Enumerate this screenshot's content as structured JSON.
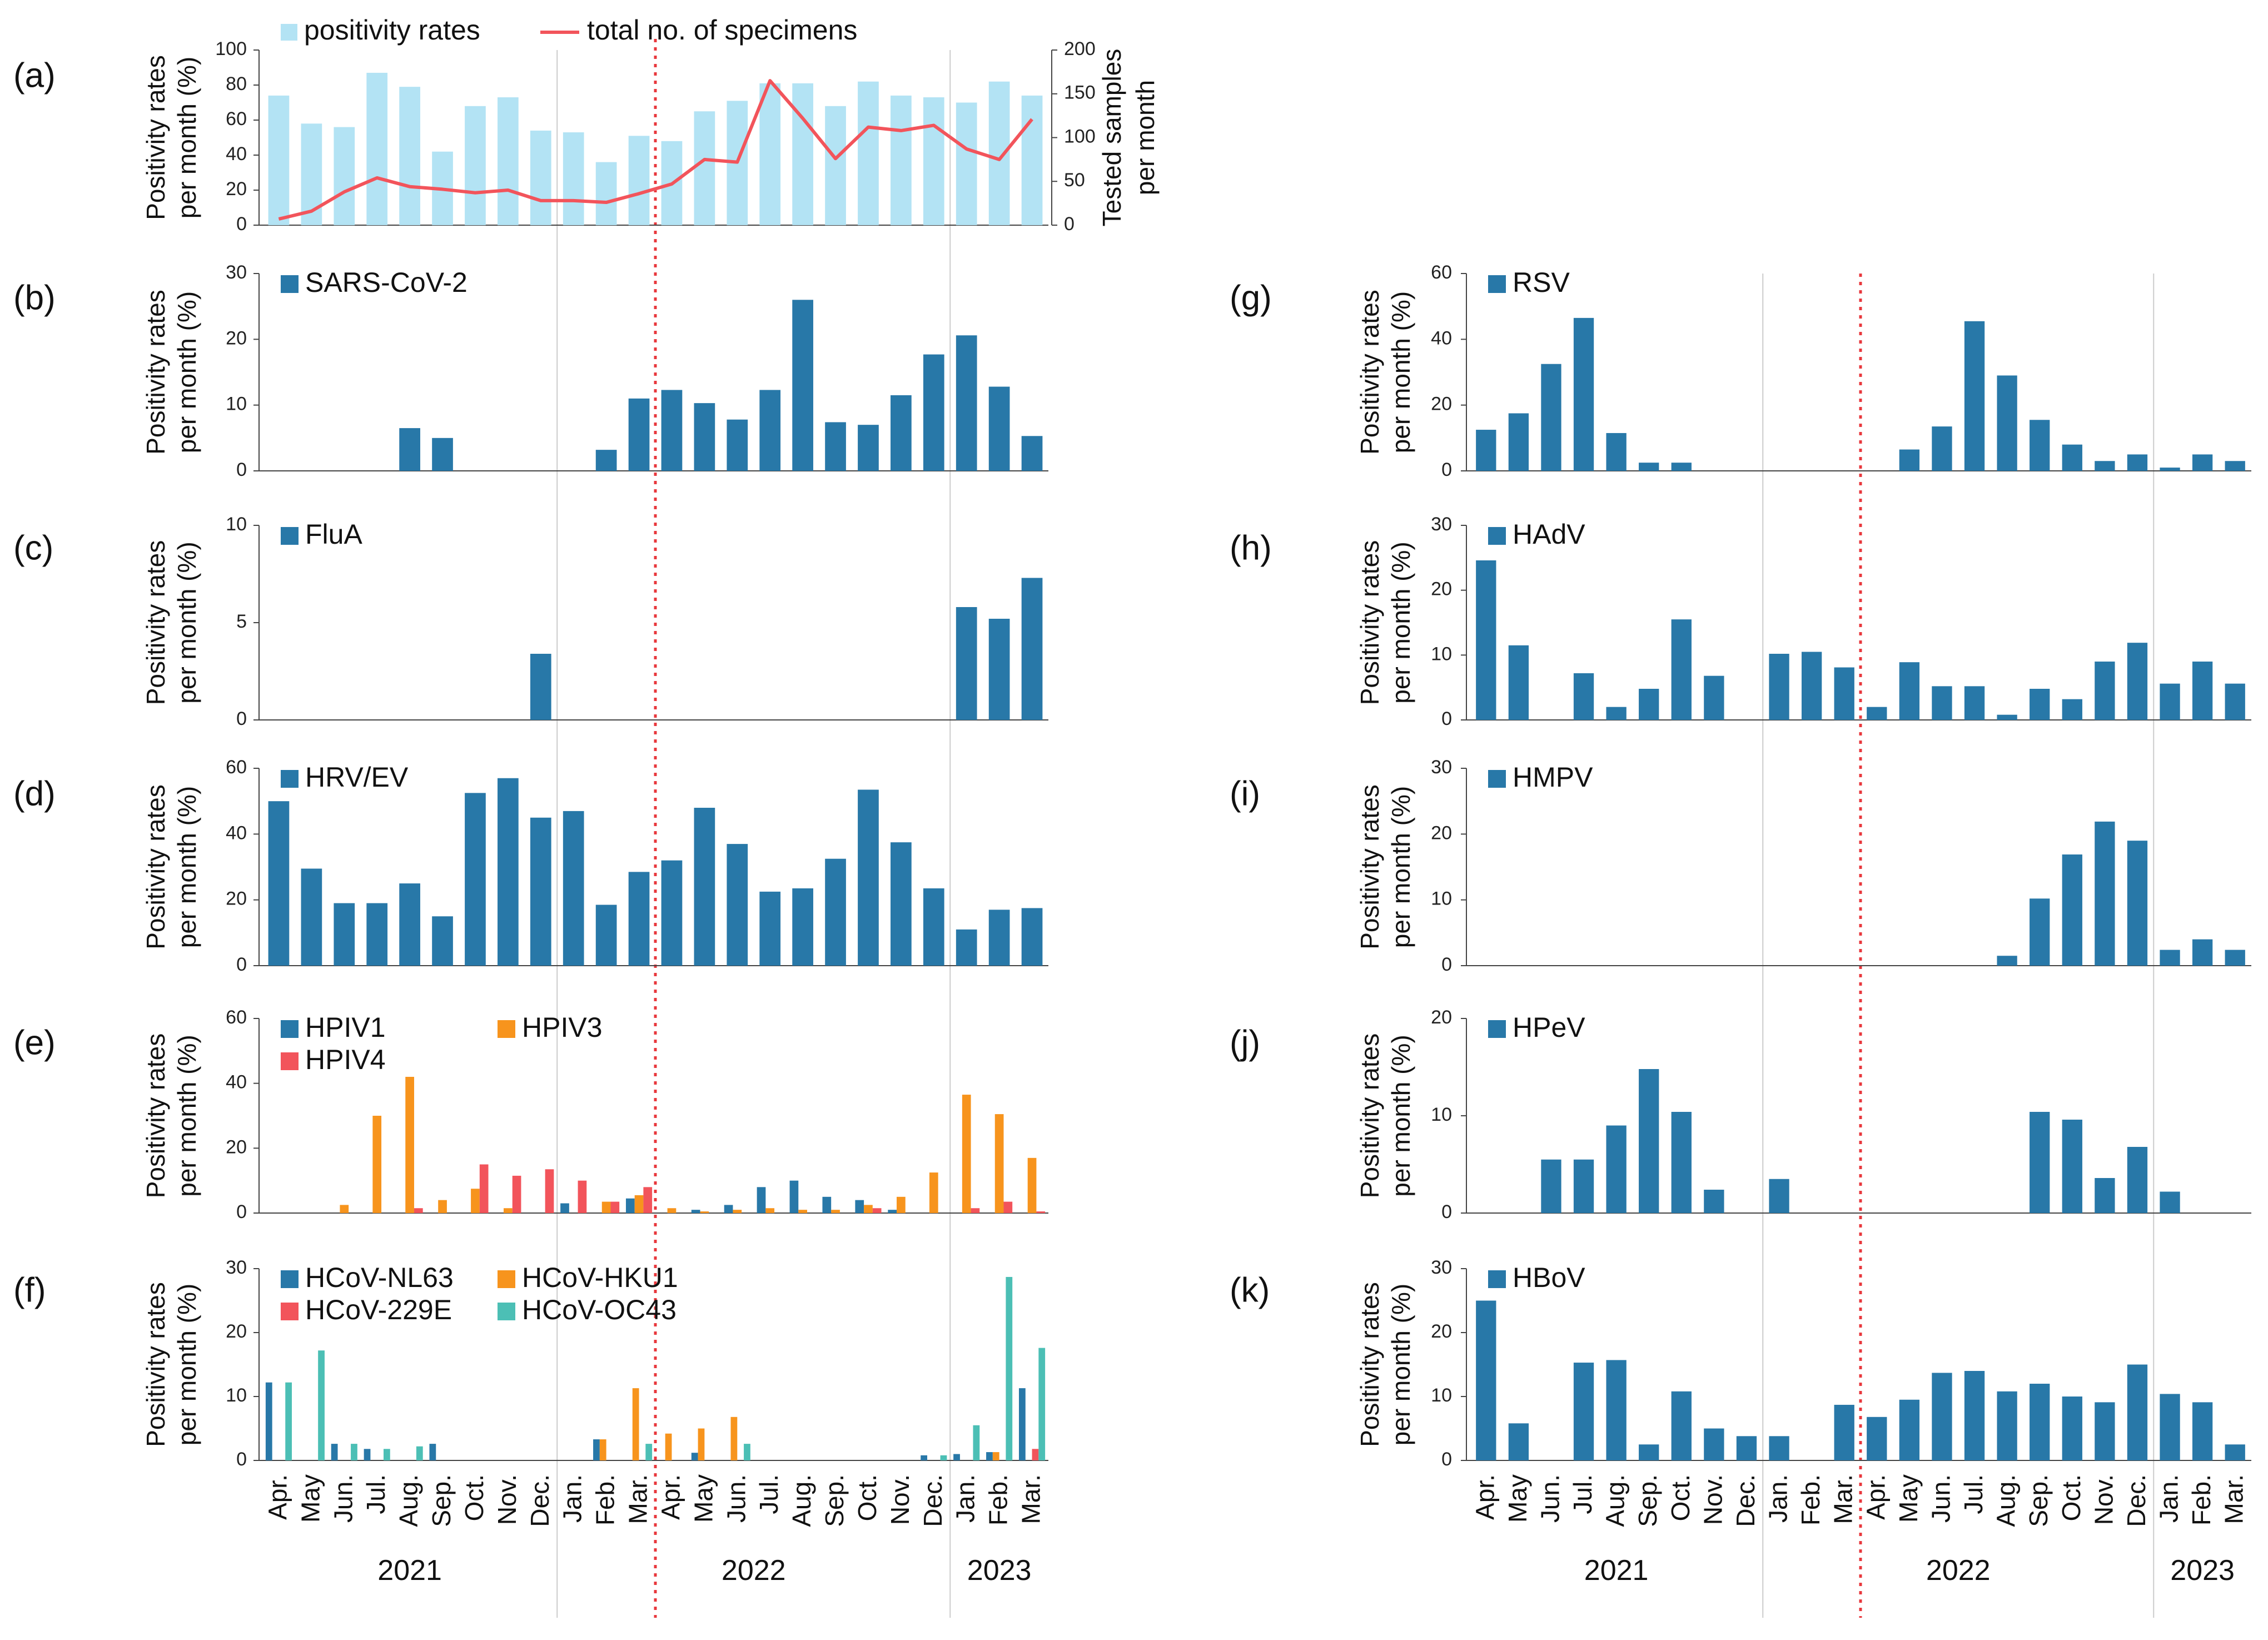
{
  "colors": {
    "bar_main": "#2878a8",
    "bar_light": "#b3e3f4",
    "line_red": "#f2545b",
    "orange": "#f7941d",
    "red": "#f2545b",
    "teal": "#4cbfb5",
    "year_sep": "#cccccc",
    "period_line": "#e8383d"
  },
  "chart_data": [
    {
      "id": "a",
      "label": "(a)",
      "type": "bar+line",
      "categories": [
        "Apr.",
        "May",
        "Jun.",
        "Jul.",
        "Aug.",
        "Sep.",
        "Oct.",
        "Nov.",
        "Dec.",
        "Jan.",
        "Feb.",
        "Mar.",
        "Apr.",
        "May",
        "Jun.",
        "Jul.",
        "Aug.",
        "Sep.",
        "Oct.",
        "Nov.",
        "Dec.",
        "Jan.",
        "Feb.",
        "Mar."
      ],
      "ylabel": [
        "Positivity rates",
        "per month (%)"
      ],
      "y2label": [
        "Tested samples",
        "per month"
      ],
      "ylim": [
        0,
        100
      ],
      "yticks": [
        0,
        20,
        40,
        60,
        80,
        100
      ],
      "y2lim": [
        0,
        200
      ],
      "y2ticks": [
        0,
        50,
        100,
        150,
        200
      ],
      "series": [
        {
          "name": "positivity rates",
          "kind": "bar",
          "color": "bar_light",
          "values": [
            74,
            58,
            56,
            87,
            79,
            42,
            68,
            73,
            54,
            53,
            36,
            51,
            48,
            65,
            71,
            81,
            81,
            68,
            82,
            74,
            73,
            70,
            82,
            74
          ]
        },
        {
          "name": "total no. of specimens",
          "kind": "line",
          "color": "line_red",
          "axis": "right",
          "values": [
            7,
            16,
            38,
            54,
            44,
            41,
            37,
            40,
            28,
            28,
            26,
            36,
            47,
            75,
            72,
            165,
            122,
            76,
            112,
            108,
            114,
            87,
            75,
            121
          ]
        }
      ]
    },
    {
      "id": "b",
      "label": "(b)",
      "type": "bar",
      "ylabel": [
        "Positivity rates",
        "per month (%)"
      ],
      "ylim": [
        0,
        30
      ],
      "yticks": [
        0,
        10,
        20,
        30
      ],
      "series": [
        {
          "name": "SARS-CoV-2",
          "color": "bar_main",
          "values": [
            0,
            0,
            0,
            0,
            6.5,
            5,
            0,
            0,
            0,
            0,
            3.2,
            11,
            12.3,
            10.3,
            7.8,
            12.3,
            26,
            7.4,
            7,
            11.5,
            17.7,
            20.6,
            12.8,
            5.3
          ]
        }
      ]
    },
    {
      "id": "c",
      "label": "(c)",
      "type": "bar",
      "ylabel": [
        "Positivity rates",
        "per month (%)"
      ],
      "ylim": [
        0,
        10
      ],
      "yticks": [
        0,
        5,
        10
      ],
      "series": [
        {
          "name": "FluA",
          "color": "bar_main",
          "values": [
            0,
            0,
            0,
            0,
            0,
            0,
            0,
            0,
            3.4,
            0,
            0,
            0,
            0,
            0,
            0,
            0,
            0,
            0,
            0,
            0,
            0,
            5.8,
            5.2,
            7.3
          ]
        }
      ]
    },
    {
      "id": "d",
      "label": "(d)",
      "type": "bar",
      "ylabel": [
        "Positivity rates",
        "per month (%)"
      ],
      "ylim": [
        0,
        60
      ],
      "yticks": [
        0,
        20,
        40,
        60
      ],
      "series": [
        {
          "name": "HRV/EV",
          "color": "bar_main",
          "values": [
            50,
            29.5,
            19,
            19,
            25,
            15,
            52.5,
            57,
            45,
            47,
            18.5,
            28.5,
            32,
            48,
            37,
            22.5,
            23.5,
            32.5,
            53.5,
            37.5,
            23.5,
            11,
            17,
            17.5
          ]
        }
      ]
    },
    {
      "id": "e",
      "label": "(e)",
      "type": "grouped-bar",
      "ylabel": [
        "Positivity rates",
        "per month (%)"
      ],
      "ylim": [
        0,
        60
      ],
      "yticks": [
        0,
        20,
        40,
        60
      ],
      "series": [
        {
          "name": "HPIV1",
          "color": "bar_main",
          "values": [
            0,
            0,
            0,
            0,
            0,
            0,
            0,
            0,
            0,
            3,
            0,
            4.5,
            0,
            1,
            2.5,
            8,
            10,
            5,
            4,
            1,
            0,
            0,
            0,
            0
          ]
        },
        {
          "name": "HPIV3",
          "color": "orange",
          "values": [
            0,
            0,
            2.5,
            30,
            42,
            4,
            7.5,
            1.5,
            0,
            0,
            3.5,
            5.5,
            1.5,
            0.5,
            1,
            1.5,
            1,
            1,
            2.5,
            5,
            12.5,
            36.5,
            30.5,
            17
          ]
        },
        {
          "name": "HPIV4",
          "color": "red",
          "values": [
            0,
            0,
            0,
            0,
            1.5,
            0,
            15,
            11.5,
            13.5,
            10,
            3.5,
            8,
            0,
            0,
            0,
            0,
            0,
            0,
            1.5,
            0,
            0,
            1.5,
            3.5,
            0.5
          ]
        }
      ]
    },
    {
      "id": "f",
      "label": "(f)",
      "type": "grouped-bar",
      "ylabel": [
        "Positivity rates",
        "per month (%)"
      ],
      "ylim": [
        0,
        30
      ],
      "yticks": [
        0,
        10,
        20,
        30
      ],
      "series": [
        {
          "name": "HCoV-NL63",
          "color": "bar_main",
          "values": [
            12.2,
            0,
            2.6,
            1.8,
            0,
            2.6,
            0,
            0,
            0,
            0,
            3.3,
            0,
            0,
            1.2,
            0,
            0,
            0,
            0,
            0,
            0,
            0.8,
            1,
            1.3,
            11.3
          ]
        },
        {
          "name": "HCoV-HKU1",
          "color": "orange",
          "values": [
            0,
            0,
            0,
            0,
            0,
            0,
            0,
            0,
            0,
            0,
            3.3,
            11.3,
            4.2,
            5,
            6.8,
            0,
            0,
            0,
            0,
            0,
            0,
            0,
            1.3,
            0
          ]
        },
        {
          "name": "HCoV-229E",
          "color": "red",
          "values": [
            0,
            0,
            0,
            0,
            0,
            0,
            0,
            0,
            0,
            0,
            0,
            0,
            0,
            0,
            0,
            0,
            0,
            0,
            0,
            0,
            0,
            0,
            0,
            1.8
          ]
        },
        {
          "name": "HCoV-OC43",
          "color": "teal",
          "values": [
            12.2,
            17.2,
            2.6,
            1.8,
            2.2,
            0,
            0,
            0,
            0,
            0,
            0,
            2.6,
            0,
            0,
            2.6,
            0,
            0,
            0,
            0,
            0,
            0.8,
            5.5,
            28.7,
            17.6
          ]
        }
      ]
    },
    {
      "id": "g",
      "label": "(g)",
      "type": "bar",
      "ylabel": [
        "Positivity rates",
        "per month (%)"
      ],
      "ylim": [
        0,
        60
      ],
      "yticks": [
        0,
        20,
        40,
        60
      ],
      "series": [
        {
          "name": "RSV",
          "color": "bar_main",
          "values": [
            12.5,
            17.5,
            32.5,
            46.5,
            11.5,
            2.5,
            2.5,
            0,
            0,
            0,
            0,
            0,
            0,
            6.5,
            13.5,
            45.5,
            29,
            15.5,
            8,
            3,
            5,
            1,
            5,
            3
          ]
        }
      ]
    },
    {
      "id": "h",
      "label": "(h)",
      "type": "bar",
      "ylabel": [
        "Positivity rates",
        "per month (%)"
      ],
      "ylim": [
        0,
        30
      ],
      "yticks": [
        0,
        10,
        20,
        30
      ],
      "series": [
        {
          "name": "HAdV",
          "color": "bar_main",
          "values": [
            24.6,
            11.5,
            0,
            7.2,
            2,
            4.8,
            15.5,
            6.8,
            0,
            10.2,
            10.5,
            8.1,
            2,
            8.9,
            5.2,
            5.2,
            0.8,
            4.8,
            3.2,
            9,
            11.9,
            5.6,
            9,
            5.6
          ]
        }
      ]
    },
    {
      "id": "i",
      "label": "(i)",
      "type": "bar",
      "ylabel": [
        "Positivity rates",
        "per month (%)"
      ],
      "ylim": [
        0,
        30
      ],
      "yticks": [
        0,
        10,
        20,
        30
      ],
      "series": [
        {
          "name": "HMPV",
          "color": "bar_main",
          "values": [
            0,
            0,
            0,
            0,
            0,
            0,
            0,
            0,
            0,
            0,
            0,
            0,
            0,
            0,
            0,
            0,
            1.5,
            10.2,
            16.9,
            21.9,
            19,
            2.4,
            4,
            2.4
          ]
        }
      ]
    },
    {
      "id": "j",
      "label": "(j)",
      "type": "bar",
      "ylabel": [
        "Positivity rates",
        "per month (%)"
      ],
      "ylim": [
        0,
        20
      ],
      "yticks": [
        0,
        10,
        20
      ],
      "series": [
        {
          "name": "HPeV",
          "color": "bar_main",
          "values": [
            0,
            0,
            5.5,
            5.5,
            9,
            14.8,
            10.4,
            2.4,
            0,
            3.5,
            0,
            0,
            0,
            0,
            0,
            0,
            0,
            10.4,
            9.6,
            3.6,
            6.8,
            2.2,
            0,
            0
          ]
        }
      ]
    },
    {
      "id": "k",
      "label": "(k)",
      "type": "bar",
      "ylabel": [
        "Positivity rates",
        "per month (%)"
      ],
      "ylim": [
        0,
        30
      ],
      "yticks": [
        0,
        10,
        20,
        30
      ],
      "series": [
        {
          "name": "HBoV",
          "color": "bar_main",
          "values": [
            25,
            5.8,
            0,
            15.3,
            15.7,
            2.5,
            10.8,
            5,
            3.8,
            3.8,
            0,
            8.7,
            6.8,
            9.5,
            13.7,
            14,
            10.8,
            12,
            10,
            9.1,
            15,
            10.4,
            9.1,
            2.5
          ]
        }
      ]
    }
  ],
  "x_axis": {
    "months": [
      "Apr.",
      "May",
      "Jun.",
      "Jul.",
      "Aug.",
      "Sep.",
      "Oct.",
      "Nov.",
      "Dec.",
      "Jan.",
      "Feb.",
      "Mar.",
      "Apr.",
      "May",
      "Jun.",
      "Jul.",
      "Aug.",
      "Sep.",
      "Oct.",
      "Nov.",
      "Dec.",
      "Jan.",
      "Feb.",
      "Mar."
    ],
    "years": [
      "2021",
      "2022",
      "2023"
    ]
  }
}
